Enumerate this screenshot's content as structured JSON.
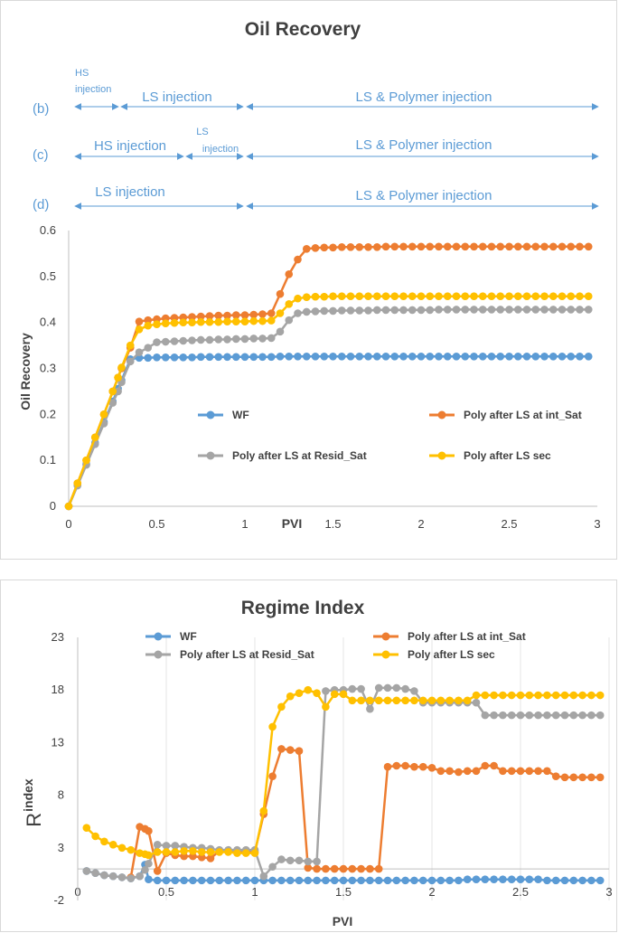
{
  "colors": {
    "wf": "#5b9bd5",
    "poly_int": "#ed7d31",
    "poly_resid": "#a5a5a5",
    "poly_sec": "#ffc000",
    "phase": "#5b9bd5"
  },
  "phases": {
    "b": {
      "label": "(b)",
      "segments": [
        {
          "label_line1": "HS",
          "label_line2": "injection"
        },
        {
          "label": "LS injection"
        },
        {
          "label": "LS & Polymer injection"
        }
      ]
    },
    "c": {
      "label": "(c)",
      "segments": [
        {
          "label": "HS injection"
        },
        {
          "label_line1": "LS",
          "label_line2": "injection"
        },
        {
          "label": "LS & Polymer injection"
        }
      ]
    },
    "d": {
      "label": "(d)",
      "segments": [
        {
          "label": "LS injection"
        },
        {
          "label": "LS & Polymer injection"
        }
      ]
    }
  },
  "chart_data": [
    {
      "type": "line",
      "title": "Oil Recovery",
      "xlabel": "PVI",
      "ylabel": "Oil Recovery",
      "xlim": [
        0,
        3
      ],
      "ylim": [
        0,
        0.6
      ],
      "xticks": [
        "0",
        "0.5",
        "1",
        "1.5",
        "2",
        "2.5",
        "3"
      ],
      "yticks": [
        "0",
        "0.1",
        "0.2",
        "0.3",
        "0.4",
        "0.5",
        "0.6"
      ],
      "x": [
        0,
        0.05,
        0.1,
        0.15,
        0.2,
        0.25,
        0.28,
        0.3,
        0.35,
        0.4,
        0.45,
        0.5,
        0.55,
        0.6,
        0.65,
        0.7,
        0.75,
        0.8,
        0.85,
        0.9,
        0.95,
        1.0,
        1.05,
        1.1,
        1.15,
        1.2,
        1.25,
        1.3,
        1.35,
        1.4,
        1.45,
        1.5,
        1.55,
        1.6,
        1.65,
        1.7,
        1.75,
        1.8,
        1.85,
        1.9,
        1.95,
        2.0,
        2.05,
        2.1,
        2.15,
        2.2,
        2.25,
        2.3,
        2.35,
        2.4,
        2.45,
        2.5,
        2.55,
        2.6,
        2.65,
        2.7,
        2.75,
        2.8,
        2.85,
        2.9,
        2.95
      ],
      "series": [
        {
          "name": "WF",
          "values": [
            0,
            0.047,
            0.092,
            0.138,
            0.183,
            0.228,
            0.256,
            0.274,
            0.32,
            0.323,
            0.323,
            0.324,
            0.324,
            0.324,
            0.324,
            0.324,
            0.325,
            0.325,
            0.325,
            0.325,
            0.325,
            0.325,
            0.325,
            0.325,
            0.325,
            0.326,
            0.326,
            0.326,
            0.326,
            0.326,
            0.326,
            0.326,
            0.326,
            0.326,
            0.326,
            0.326,
            0.326,
            0.326,
            0.326,
            0.326,
            0.326,
            0.326,
            0.326,
            0.326,
            0.326,
            0.326,
            0.326,
            0.326,
            0.326,
            0.326,
            0.326,
            0.326,
            0.326,
            0.326,
            0.326,
            0.326,
            0.326,
            0.326,
            0.326,
            0.326,
            0.326
          ]
        },
        {
          "name": "Poly after LS at int_Sat",
          "values": [
            0,
            0.05,
            0.1,
            0.15,
            0.2,
            0.25,
            0.28,
            0.3,
            0.345,
            0.402,
            0.405,
            0.407,
            0.409,
            0.41,
            0.411,
            0.412,
            0.413,
            0.414,
            0.415,
            0.415,
            0.416,
            0.416,
            0.417,
            0.418,
            0.42,
            0.462,
            0.505,
            0.537,
            0.56,
            0.562,
            0.563,
            0.563,
            0.564,
            0.564,
            0.564,
            0.564,
            0.564,
            0.565,
            0.565,
            0.565,
            0.565,
            0.565,
            0.565,
            0.565,
            0.565,
            0.565,
            0.565,
            0.565,
            0.565,
            0.565,
            0.565,
            0.565,
            0.565,
            0.565,
            0.565,
            0.565,
            0.565,
            0.565,
            0.565,
            0.565,
            0.565
          ]
        },
        {
          "name": "Poly after LS at Resid_Sat",
          "values": [
            0,
            0.045,
            0.09,
            0.135,
            0.18,
            0.225,
            0.25,
            0.27,
            0.315,
            0.335,
            0.345,
            0.357,
            0.358,
            0.359,
            0.36,
            0.361,
            0.362,
            0.362,
            0.363,
            0.363,
            0.364,
            0.364,
            0.365,
            0.365,
            0.366,
            0.38,
            0.405,
            0.42,
            0.423,
            0.424,
            0.425,
            0.425,
            0.426,
            0.426,
            0.426,
            0.426,
            0.427,
            0.427,
            0.427,
            0.427,
            0.427,
            0.427,
            0.427,
            0.428,
            0.428,
            0.428,
            0.428,
            0.428,
            0.428,
            0.428,
            0.428,
            0.428,
            0.428,
            0.428,
            0.428,
            0.428,
            0.428,
            0.428,
            0.428,
            0.428,
            0.428
          ]
        },
        {
          "name": "Poly after LS sec",
          "values": [
            0,
            0.05,
            0.1,
            0.15,
            0.2,
            0.25,
            0.28,
            0.302,
            0.35,
            0.385,
            0.393,
            0.396,
            0.398,
            0.399,
            0.4,
            0.4,
            0.401,
            0.401,
            0.401,
            0.402,
            0.402,
            0.402,
            0.403,
            0.403,
            0.404,
            0.42,
            0.44,
            0.452,
            0.455,
            0.456,
            0.456,
            0.457,
            0.457,
            0.457,
            0.457,
            0.457,
            0.457,
            0.457,
            0.457,
            0.457,
            0.457,
            0.457,
            0.457,
            0.457,
            0.457,
            0.457,
            0.457,
            0.457,
            0.457,
            0.457,
            0.457,
            0.457,
            0.457,
            0.457,
            0.457,
            0.457,
            0.457,
            0.457,
            0.457,
            0.457,
            0.457
          ]
        }
      ]
    },
    {
      "type": "line",
      "title": "Regime Index",
      "xlabel": "PVI",
      "ylabel_main": "R",
      "ylabel_sub": "index",
      "xlim": [
        0,
        3
      ],
      "ylim": [
        -2,
        23
      ],
      "xticks": [
        "0",
        "0.5",
        "1",
        "1.5",
        "2",
        "2.5",
        "3"
      ],
      "yticks": [
        "-2",
        "3",
        "8",
        "13",
        "18",
        "23"
      ],
      "x": [
        0.05,
        0.1,
        0.15,
        0.2,
        0.25,
        0.3,
        0.35,
        0.38,
        0.4,
        0.45,
        0.5,
        0.55,
        0.6,
        0.65,
        0.7,
        0.75,
        0.8,
        0.85,
        0.9,
        0.95,
        1.0,
        1.05,
        1.1,
        1.15,
        1.2,
        1.25,
        1.3,
        1.35,
        1.4,
        1.45,
        1.5,
        1.55,
        1.6,
        1.65,
        1.7,
        1.75,
        1.8,
        1.85,
        1.9,
        1.95,
        2.0,
        2.05,
        2.1,
        2.15,
        2.2,
        2.25,
        2.3,
        2.35,
        2.4,
        2.45,
        2.5,
        2.55,
        2.6,
        2.65,
        2.7,
        2.75,
        2.8,
        2.85,
        2.9,
        2.95
      ],
      "series": [
        {
          "name": "WF",
          "values": [
            0.8,
            0.6,
            0.4,
            0.3,
            0.2,
            0.1,
            0.3,
            1.4,
            0.0,
            -0.1,
            -0.1,
            -0.1,
            -0.1,
            -0.1,
            -0.1,
            -0.1,
            -0.1,
            -0.1,
            -0.1,
            -0.1,
            -0.1,
            -0.1,
            -0.1,
            -0.1,
            -0.1,
            -0.1,
            -0.1,
            -0.1,
            -0.1,
            -0.1,
            -0.1,
            -0.1,
            -0.1,
            -0.1,
            -0.1,
            -0.1,
            -0.1,
            -0.1,
            -0.1,
            -0.1,
            -0.1,
            -0.1,
            -0.1,
            -0.1,
            0.0,
            0.0,
            0.0,
            0.0,
            0.0,
            0.0,
            0.0,
            0.0,
            0.0,
            -0.1,
            -0.1,
            -0.1,
            -0.1,
            -0.1,
            -0.1,
            -0.1
          ]
        },
        {
          "name": "Poly after LS at int_Sat",
          "values": [
            null,
            null,
            null,
            null,
            null,
            0.2,
            5.0,
            4.8,
            4.6,
            0.8,
            2.5,
            2.3,
            2.2,
            2.2,
            2.1,
            2.0,
            2.7,
            2.7,
            2.6,
            2.6,
            2.6,
            6.2,
            9.8,
            12.4,
            12.3,
            12.2,
            1.1,
            1.0,
            1.0,
            1.0,
            1.0,
            1.0,
            1.0,
            1.0,
            1.0,
            10.7,
            10.8,
            10.8,
            10.7,
            10.7,
            10.6,
            10.3,
            10.3,
            10.2,
            10.3,
            10.3,
            10.8,
            10.8,
            10.3,
            10.3,
            10.3,
            10.3,
            10.3,
            10.3,
            9.8,
            9.7,
            9.7,
            9.7,
            9.7,
            9.7
          ]
        },
        {
          "name": "Poly after LS at Resid_Sat",
          "values": [
            0.8,
            0.6,
            0.4,
            0.3,
            0.2,
            0.1,
            0.3,
            0.9,
            1.5,
            3.3,
            3.2,
            3.2,
            3.1,
            3.0,
            3.0,
            2.9,
            2.8,
            2.8,
            2.8,
            2.8,
            2.8,
            0.3,
            1.2,
            1.9,
            1.8,
            1.8,
            1.7,
            1.7,
            17.9,
            18.0,
            18.0,
            18.1,
            18.1,
            16.2,
            18.2,
            18.2,
            18.2,
            18.1,
            17.9,
            16.8,
            16.8,
            16.8,
            16.8,
            16.8,
            16.8,
            16.8,
            15.6,
            15.6,
            15.6,
            15.6,
            15.6,
            15.6,
            15.6,
            15.6,
            15.6,
            15.6,
            15.6,
            15.6,
            15.6,
            15.6
          ]
        },
        {
          "name": "Poly after LS sec",
          "values": [
            4.9,
            4.1,
            3.6,
            3.3,
            3.0,
            2.8,
            2.5,
            2.4,
            2.3,
            2.6,
            2.6,
            2.6,
            2.7,
            2.7,
            2.6,
            2.6,
            2.6,
            2.6,
            2.5,
            2.5,
            2.5,
            6.5,
            14.5,
            16.4,
            17.4,
            17.7,
            18.0,
            17.7,
            16.4,
            17.6,
            17.6,
            17.0,
            17.0,
            17.0,
            17.0,
            17.0,
            17.0,
            17.0,
            17.0,
            17.0,
            17.0,
            17.0,
            17.0,
            17.0,
            17.0,
            17.5,
            17.5,
            17.5,
            17.5,
            17.5,
            17.5,
            17.5,
            17.5,
            17.5,
            17.5,
            17.5,
            17.5,
            17.5,
            17.5,
            17.5
          ]
        }
      ]
    }
  ]
}
